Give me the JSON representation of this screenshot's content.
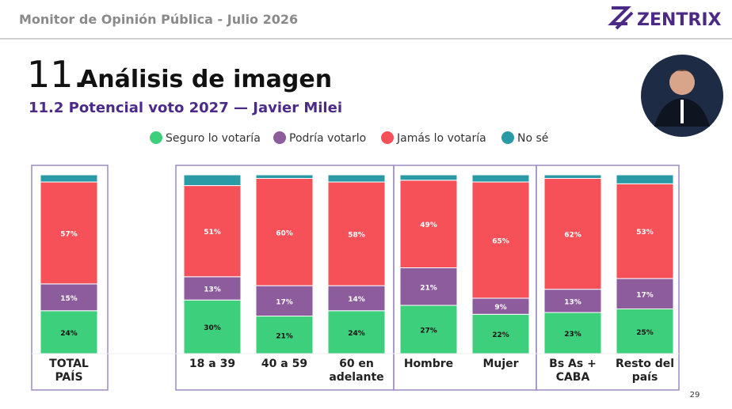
{
  "header": {
    "title": "Monitor de Opinión Pública - Julio 2026",
    "brand": "ZENTRIX"
  },
  "section": {
    "number": "11.",
    "title": "Análisis de imagen"
  },
  "page_number": "29",
  "chart_data": {
    "type": "bar",
    "stacked": true,
    "title": "11.2 Potencial voto 2027 — Javier Milei",
    "categories": [
      "TOTAL PAÍS",
      "18 a 39",
      "40 a 59",
      "60 en adelante",
      "Hombre",
      "Mujer",
      "Bs As + CABA",
      "Resto del país"
    ],
    "ylim": [
      0,
      100
    ],
    "series": [
      {
        "name": "Seguro lo votaría",
        "color": "#3ecf7c",
        "values": [
          24,
          30,
          21,
          24,
          27,
          22,
          23,
          25
        ],
        "value_labels": [
          "24%",
          "30%",
          "21%",
          "24%",
          "27%",
          "22%",
          "23%",
          "25%"
        ]
      },
      {
        "name": "Podría votarlo",
        "color": "#8c5c9c",
        "values": [
          15,
          13,
          17,
          14,
          21,
          9,
          13,
          17
        ],
        "value_labels": [
          "15%",
          "13%",
          "17%",
          "14%",
          "21%",
          "9%",
          "13%",
          "17%"
        ]
      },
      {
        "name": "Jamás lo votaría",
        "color": "#f65058",
        "values": [
          57,
          51,
          60,
          58,
          49,
          65,
          62,
          53
        ],
        "value_labels": [
          "57%",
          "51%",
          "60%",
          "58%",
          "49%",
          "65%",
          "62%",
          "53%"
        ]
      },
      {
        "name": "No sé",
        "color": "#2a9aa6",
        "values": [
          4,
          6,
          2,
          4,
          3,
          4,
          2,
          5
        ]
      }
    ]
  }
}
